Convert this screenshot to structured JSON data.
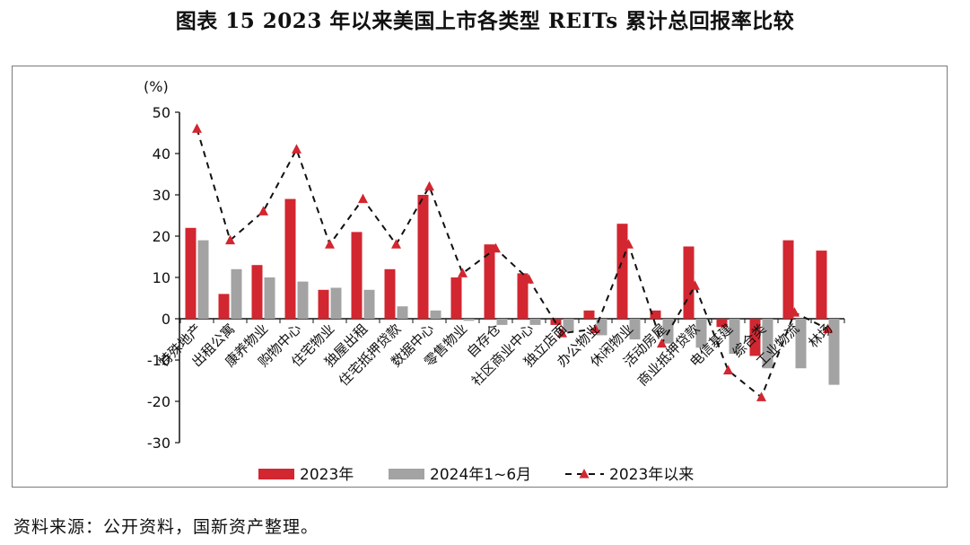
{
  "title": "图表 15  2023 年以来美国上市各类型 REITs 累计总回报率比较",
  "source": "资料来源：公开资料，国新资产整理。",
  "chart_data": {
    "type": "bar",
    "ylabel": "(%)",
    "ylim": [
      -30,
      50
    ],
    "yticks": [
      50,
      40,
      30,
      20,
      10,
      0,
      -10,
      -20,
      -30
    ],
    "grid": false,
    "legend_position": "bottom",
    "categories": [
      "特殊地产",
      "出租公寓",
      "康养物业",
      "购物中心",
      "住宅物业",
      "独屋出租",
      "住宅抵押贷款",
      "数据中心",
      "零售物业",
      "自存仓",
      "社区商业中心",
      "独立店面",
      "办公物业",
      "休闲物业",
      "活动房屋",
      "商业抵押贷款",
      "电信基建",
      "综合类",
      "工业物流",
      "林场"
    ],
    "series": [
      {
        "name": "2023年",
        "kind": "bar",
        "color": "#d22630",
        "values": [
          22,
          6,
          13,
          29,
          7,
          21,
          12,
          30,
          10,
          18,
          11,
          -1.5,
          2,
          23,
          2,
          17.5,
          -2,
          -9,
          19,
          16.5
        ]
      },
      {
        "name": "2024年1~6月",
        "kind": "bar",
        "color": "#a3a3a3",
        "values": [
          19,
          12,
          10,
          9,
          7.5,
          7,
          3,
          2,
          -0.5,
          -1.5,
          -1.5,
          -3,
          -4,
          -5,
          -6,
          -7,
          -8.5,
          -12,
          -12,
          -16
        ]
      },
      {
        "name": "2023年以来",
        "kind": "line",
        "color": "#d22630",
        "line_color": "#111111",
        "values": [
          46,
          19,
          26,
          41,
          18,
          29,
          18,
          32,
          11,
          17,
          9.5,
          -3.5,
          -2.5,
          18,
          -6,
          8,
          -12.5,
          -19,
          1.5,
          -2.5
        ]
      }
    ]
  }
}
